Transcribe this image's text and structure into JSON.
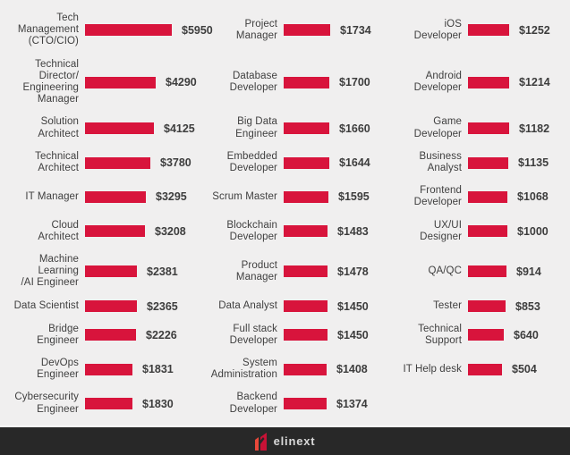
{
  "colors": {
    "background": "#f0efef",
    "bar_red": "#d8143c",
    "text": "#3f3f3f",
    "footer_bg": "#282828",
    "logo_red_bright": "#e8483a",
    "logo_red_dark": "#c81236"
  },
  "chart_data": {
    "type": "bar",
    "orientation": "horizontal",
    "value_prefix": "$",
    "columns": [
      {
        "items": [
          {
            "label": "Tech\nManagement\n(CTO/CIO)",
            "value": 5950,
            "display": "$5950"
          },
          {
            "label": "Technical\nDirector/\nEngineering\nManager",
            "value": 4290,
            "display": "$4290"
          },
          {
            "label": "Solution\nArchitect",
            "value": 4125,
            "display": "$4125"
          },
          {
            "label": "Technical\nArchitect",
            "value": 3780,
            "display": "$3780"
          },
          {
            "label": "IT Manager",
            "value": 3295,
            "display": "$3295"
          },
          {
            "label": "Cloud\nArchitect",
            "value": 3208,
            "display": "$3208"
          },
          {
            "label": "Machine\nLearning\n/AI Engineer",
            "value": 2381,
            "display": "$2381"
          },
          {
            "label": "Data Scientist",
            "value": 2365,
            "display": "$2365"
          },
          {
            "label": "Bridge\nEngineer",
            "value": 2226,
            "display": "$2226"
          },
          {
            "label": "DevOps\nEngineer",
            "value": 1831,
            "display": "$1831"
          },
          {
            "label": "Cybersecurity\nEngineer",
            "value": 1830,
            "display": "$1830"
          }
        ]
      },
      {
        "items": [
          {
            "label": "Project\nManager",
            "value": 1734,
            "display": "$1734"
          },
          {
            "label": "Database\nDeveloper",
            "value": 1700,
            "display": "$1700"
          },
          {
            "label": "Big Data\nEngineer",
            "value": 1660,
            "display": "$1660"
          },
          {
            "label": "Embedded\nDeveloper",
            "value": 1644,
            "display": "$1644"
          },
          {
            "label": "Scrum Master",
            "value": 1595,
            "display": "$1595"
          },
          {
            "label": "Blockchain\nDeveloper",
            "value": 1483,
            "display": "$1483"
          },
          {
            "label": "Product\nManager",
            "value": 1478,
            "display": "$1478"
          },
          {
            "label": "Data Analyst",
            "value": 1450,
            "display": "$1450"
          },
          {
            "label": "Full stack\nDeveloper",
            "value": 1450,
            "display": "$1450"
          },
          {
            "label": "System\nAdministration",
            "value": 1408,
            "display": "$1408"
          },
          {
            "label": "Backend\nDeveloper",
            "value": 1374,
            "display": "$1374"
          }
        ]
      },
      {
        "items": [
          {
            "label": "iOS\nDeveloper",
            "value": 1252,
            "display": "$1252"
          },
          {
            "label": "Android\nDeveloper",
            "value": 1214,
            "display": "$1214"
          },
          {
            "label": "Game\nDeveloper",
            "value": 1182,
            "display": "$1182"
          },
          {
            "label": "Business\nAnalyst",
            "value": 1135,
            "display": "$1135"
          },
          {
            "label": "Frontend\nDeveloper",
            "value": 1068,
            "display": "$1068"
          },
          {
            "label": "UX/UI\nDesigner",
            "value": 1000,
            "display": "$1000"
          },
          {
            "label": "QA/QC",
            "value": 914,
            "display": "$914"
          },
          {
            "label": "Tester",
            "value": 853,
            "display": "$853"
          },
          {
            "label": "Technical\nSupport",
            "value": 640,
            "display": "$640"
          },
          {
            "label": "IT Help desk",
            "value": 504,
            "display": "$504"
          }
        ]
      }
    ]
  },
  "footer": {
    "brand_name": "elinext"
  }
}
